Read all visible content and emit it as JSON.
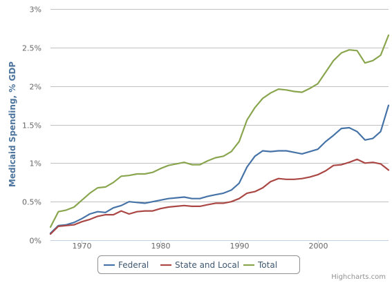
{
  "chart_data": {
    "type": "line",
    "ylabel": "Medicaid Spending, % GDP",
    "xlim": [
      1966,
      2009
    ],
    "ylim": [
      0,
      3
    ],
    "y_tick_labels": [
      "0%",
      "0.5%",
      "1%",
      "1.5%",
      "2%",
      "2.5%",
      "3%"
    ],
    "y_tick_values": [
      0,
      0.5,
      1,
      1.5,
      2,
      2.5,
      3
    ],
    "x_tick_labels": [
      "1970",
      "1980",
      "1990",
      "2000"
    ],
    "x_tick_values": [
      1970,
      1980,
      1990,
      2000
    ],
    "grid": true,
    "legend_position": "bottom-center",
    "credits": "Highcharts.com",
    "x": [
      1966,
      1967,
      1968,
      1969,
      1970,
      1971,
      1972,
      1973,
      1974,
      1975,
      1976,
      1977,
      1978,
      1979,
      1980,
      1981,
      1982,
      1983,
      1984,
      1985,
      1986,
      1987,
      1988,
      1989,
      1990,
      1991,
      1992,
      1993,
      1994,
      1995,
      1996,
      1997,
      1998,
      1999,
      2000,
      2001,
      2002,
      2003,
      2004,
      2005,
      2006,
      2007,
      2008,
      2009
    ],
    "series": [
      {
        "name": "Federal",
        "color": "#4572a7",
        "values": [
          0.09,
          0.19,
          0.2,
          0.23,
          0.28,
          0.34,
          0.37,
          0.36,
          0.42,
          0.45,
          0.5,
          0.49,
          0.48,
          0.5,
          0.52,
          0.54,
          0.55,
          0.56,
          0.54,
          0.54,
          0.57,
          0.59,
          0.61,
          0.65,
          0.74,
          0.95,
          1.09,
          1.16,
          1.15,
          1.16,
          1.16,
          1.14,
          1.12,
          1.15,
          1.18,
          1.28,
          1.36,
          1.45,
          1.46,
          1.41,
          1.3,
          1.32,
          1.41,
          1.75
        ]
      },
      {
        "name": "State and Local",
        "color": "#aa4643",
        "values": [
          0.08,
          0.18,
          0.19,
          0.2,
          0.24,
          0.27,
          0.31,
          0.33,
          0.33,
          0.38,
          0.34,
          0.37,
          0.38,
          0.38,
          0.41,
          0.43,
          0.44,
          0.45,
          0.44,
          0.44,
          0.46,
          0.48,
          0.48,
          0.5,
          0.54,
          0.61,
          0.63,
          0.68,
          0.76,
          0.8,
          0.79,
          0.79,
          0.8,
          0.82,
          0.85,
          0.9,
          0.97,
          0.98,
          1.01,
          1.05,
          1.0,
          1.01,
          0.99,
          0.91
        ]
      },
      {
        "name": "Total",
        "color": "#89a54e",
        "values": [
          0.17,
          0.37,
          0.39,
          0.43,
          0.52,
          0.61,
          0.68,
          0.69,
          0.75,
          0.83,
          0.84,
          0.86,
          0.86,
          0.88,
          0.93,
          0.97,
          0.99,
          1.01,
          0.98,
          0.98,
          1.03,
          1.07,
          1.09,
          1.15,
          1.28,
          1.56,
          1.72,
          1.84,
          1.91,
          1.96,
          1.95,
          1.93,
          1.92,
          1.97,
          2.03,
          2.18,
          2.33,
          2.43,
          2.47,
          2.46,
          2.3,
          2.33,
          2.4,
          2.66
        ]
      }
    ]
  }
}
